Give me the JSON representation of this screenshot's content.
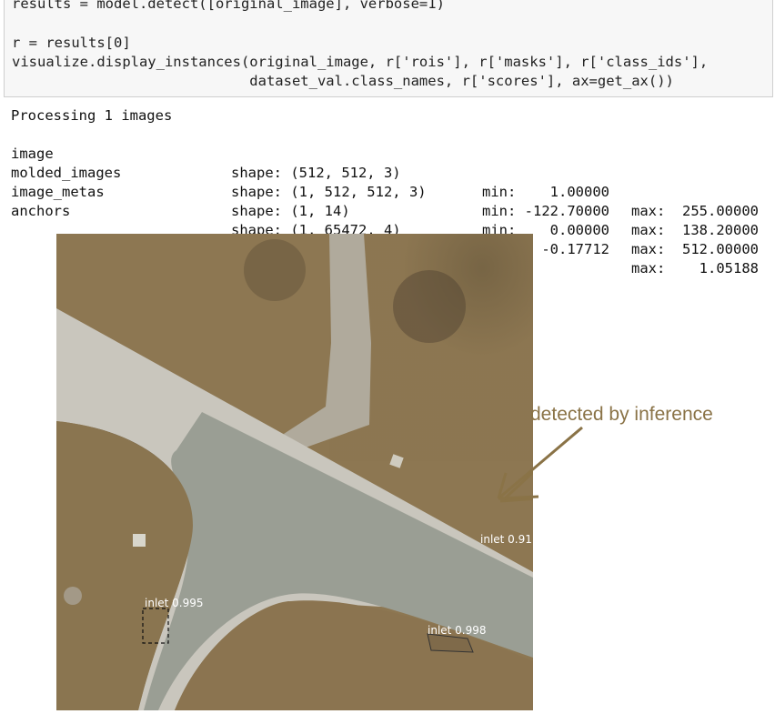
{
  "code": {
    "lines": [
      "results = model.detect([original_image], verbose=1)",
      "",
      "r = results[0]",
      "visualize.display_instances(original_image, r['rois'], r['masks'], r['class_ids'],",
      "                            dataset_val.class_names, r['scores'], ax=get_ax())"
    ]
  },
  "output": {
    "header": "Processing 1 images",
    "rows": [
      {
        "name": "image",
        "shape": "shape: (512, 512, 3)",
        "min": "min:    1.00000",
        "max": "max:  255.00000"
      },
      {
        "name": "molded_images",
        "shape": "shape: (1, 512, 512, 3)",
        "min": "min: -122.70000",
        "max": "max:  138.20000"
      },
      {
        "name": "image_metas",
        "shape": "shape: (1, 14)",
        "min": "min:    0.00000",
        "max": "max:  512.00000"
      },
      {
        "name": "anchors",
        "shape": "shape: (1, 65472, 4)",
        "min": "min:   -0.17712",
        "max": "max:    1.05188"
      }
    ]
  },
  "figure": {
    "detections": [
      "inlet 0.91",
      "inlet 0.995",
      "inlet 0.998"
    ],
    "annotation": "detected by inference",
    "colors": {
      "annotation": "#8a7347",
      "ground": "#8c7651",
      "road": "#9a9e94",
      "driveway": "#3a2e22"
    }
  }
}
